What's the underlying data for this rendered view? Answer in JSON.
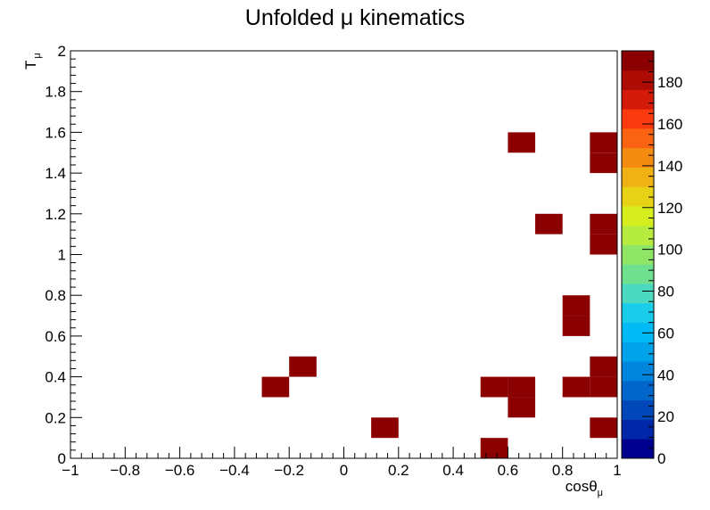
{
  "chart_data": {
    "type": "heatmap",
    "title": "Unfolded μ kinematics",
    "xlabel": {
      "main": "cosθ",
      "sub": "μ"
    },
    "ylabel": {
      "main": "T",
      "sub": "μ"
    },
    "xlim": [
      -1,
      1
    ],
    "ylim": [
      0,
      2
    ],
    "x_tick_labels": [
      "−1",
      "−0.8",
      "−0.6",
      "−0.4",
      "−0.2",
      "0",
      "0.2",
      "0.4",
      "0.6",
      "0.8",
      "1"
    ],
    "y_tick_labels": [
      "0",
      "0.2",
      "0.4",
      "0.6",
      "0.8",
      "1",
      "1.2",
      "1.4",
      "1.6",
      "1.8",
      "2"
    ],
    "x_bins": 20,
    "y_bins": 20,
    "zlim": [
      0,
      195
    ],
    "z_tick_labels": [
      "0",
      "20",
      "40",
      "60",
      "80",
      "100",
      "120",
      "140",
      "160",
      "180"
    ],
    "cells": [
      {
        "x": 0.55,
        "y": 0.05,
        "value": 195
      },
      {
        "x": 0.15,
        "y": 0.15,
        "value": 195
      },
      {
        "x": 0.95,
        "y": 0.15,
        "value": 195
      },
      {
        "x": 0.65,
        "y": 0.25,
        "value": 195
      },
      {
        "x": -0.25,
        "y": 0.35,
        "value": 195
      },
      {
        "x": 0.55,
        "y": 0.35,
        "value": 195
      },
      {
        "x": 0.65,
        "y": 0.35,
        "value": 195
      },
      {
        "x": 0.85,
        "y": 0.35,
        "value": 195
      },
      {
        "x": 0.95,
        "y": 0.35,
        "value": 195
      },
      {
        "x": -0.15,
        "y": 0.45,
        "value": 195
      },
      {
        "x": 0.95,
        "y": 0.45,
        "value": 195
      },
      {
        "x": 0.85,
        "y": 0.65,
        "value": 195
      },
      {
        "x": 0.85,
        "y": 0.75,
        "value": 195
      },
      {
        "x": 0.95,
        "y": 1.05,
        "value": 195
      },
      {
        "x": 0.75,
        "y": 1.15,
        "value": 195
      },
      {
        "x": 0.95,
        "y": 1.15,
        "value": 195
      },
      {
        "x": 0.95,
        "y": 1.45,
        "value": 195
      },
      {
        "x": 0.65,
        "y": 1.55,
        "value": 195
      },
      {
        "x": 0.95,
        "y": 1.55,
        "value": 195
      }
    ],
    "palette": [
      "#00008f",
      "#0027a8",
      "#0048ba",
      "#0066cc",
      "#0085dc",
      "#00a3ea",
      "#00baf5",
      "#19cce9",
      "#4cd9c2",
      "#6ee08f",
      "#8fe666",
      "#b5ec3f",
      "#d7ee1e",
      "#e8d215",
      "#efb114",
      "#f58c12",
      "#fa6311",
      "#fb3a0f",
      "#d41a08",
      "#ad0c04",
      "#8b0000"
    ]
  }
}
